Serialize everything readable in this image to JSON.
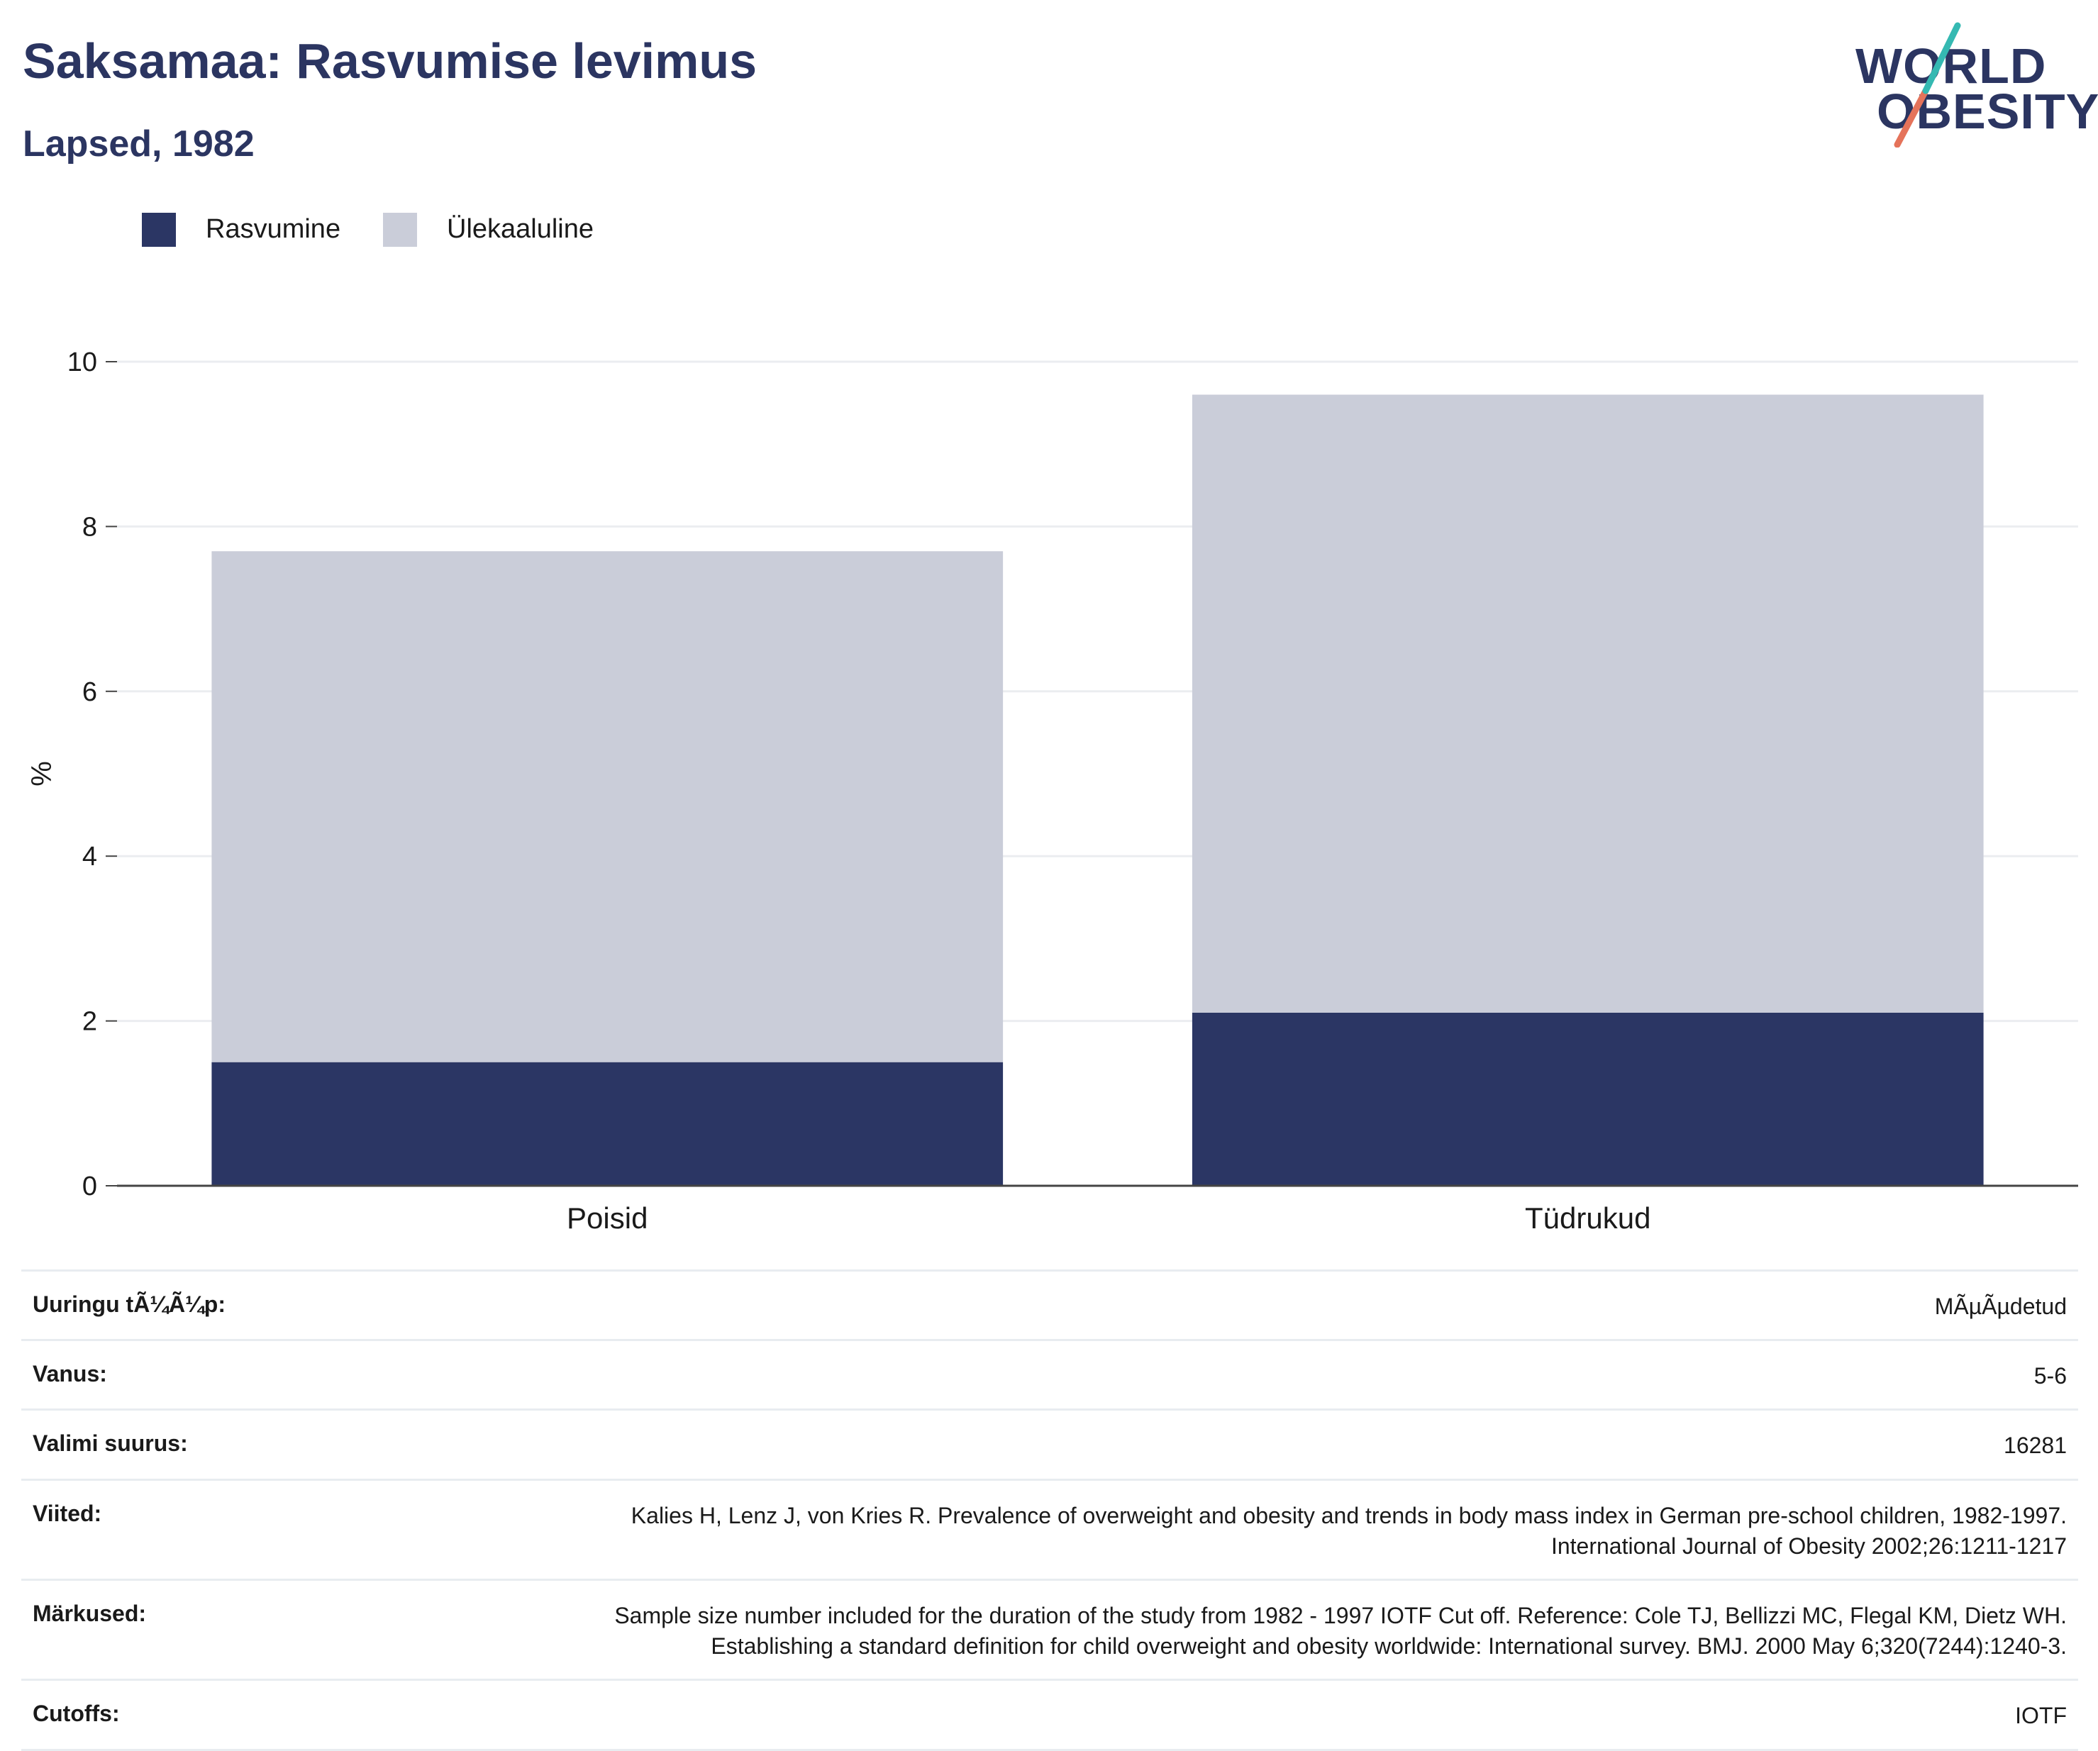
{
  "header": {
    "title": "Saksamaa: Rasvumise levimus",
    "subtitle": "Lapsed, 1982"
  },
  "logo": {
    "line1": "WORLD",
    "line2": "OBESITY"
  },
  "colors": {
    "brand_navy": "#2b3561",
    "obesity": "#2b3664",
    "overweight": "#cacdd9",
    "logo_teal": "#35b9b2",
    "logo_coral": "#e5735a"
  },
  "chart_data": {
    "type": "bar",
    "stacked": true,
    "categories": [
      "Poisid",
      "Tüdrukud"
    ],
    "series": [
      {
        "name": "Rasvumine",
        "values": [
          1.5,
          2.1
        ],
        "color": "#2b3664"
      },
      {
        "name": "Ülekaaluline",
        "values": [
          6.2,
          7.5
        ],
        "color": "#cacdd9"
      }
    ],
    "totals": [
      7.7,
      9.6
    ],
    "ylabel": "%",
    "ylim": [
      0,
      10
    ],
    "yticks": [
      0,
      2,
      4,
      6,
      8,
      10
    ],
    "grid": true,
    "legend_position": "top-left"
  },
  "info": [
    {
      "key": "Uuringu tÃ¼Ã¼p:",
      "value": "MÃµÃµdetud"
    },
    {
      "key": "Vanus:",
      "value": "5-6"
    },
    {
      "key": "Valimi suurus:",
      "value": "16281"
    },
    {
      "key": "Viited:",
      "value": "Kalies H, Lenz J, von Kries R. Prevalence of overweight and obesity and trends in body mass index in German pre-school children, 1982-1997. International Journal of Obesity 2002;26:1211-1217"
    },
    {
      "key": "Märkused:",
      "value": "Sample size number included for the duration of the study from 1982 - 1997 IOTF Cut off. Reference: Cole TJ, Bellizzi MC, Flegal KM, Dietz WH. Establishing a standard definition for child overweight and obesity worldwide: International survey. BMJ. 2000 May 6;320(7244):1240-3."
    },
    {
      "key": "Cutoffs:",
      "value": "IOTF"
    }
  ]
}
